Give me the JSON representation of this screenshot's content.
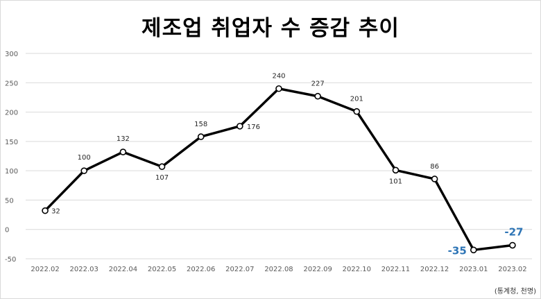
{
  "chart_data": {
    "type": "line",
    "title": "제조업 취업자 수 증감 추이",
    "categories": [
      "2022.02",
      "2022.03",
      "2022.04",
      "2022.05",
      "2022.06",
      "2022.07",
      "2022.08",
      "2022.09",
      "2022.10",
      "2022.11",
      "2022.12",
      "2023.01",
      "2023.02"
    ],
    "series": [
      {
        "values": [
          32,
          100,
          132,
          107,
          158,
          176,
          240,
          227,
          201,
          101,
          86,
          -35,
          -27
        ]
      }
    ],
    "data_labels": [
      "32",
      "100",
      "132",
      "107",
      "158",
      "176",
      "240",
      "227",
      "201",
      "101",
      "86",
      "-35",
      "-27"
    ],
    "y_ticks": [
      "300",
      "250",
      "200",
      "150",
      "100",
      "50",
      "0",
      "-50"
    ],
    "ylim": [
      -50,
      300
    ],
    "grid": true,
    "legend": "none",
    "colors": {
      "line": "#000000",
      "highlight_label": "#2e75b6",
      "grid": "#d9d9d9",
      "axis_text": "#595959"
    },
    "source": "(통계청, 천명)"
  }
}
